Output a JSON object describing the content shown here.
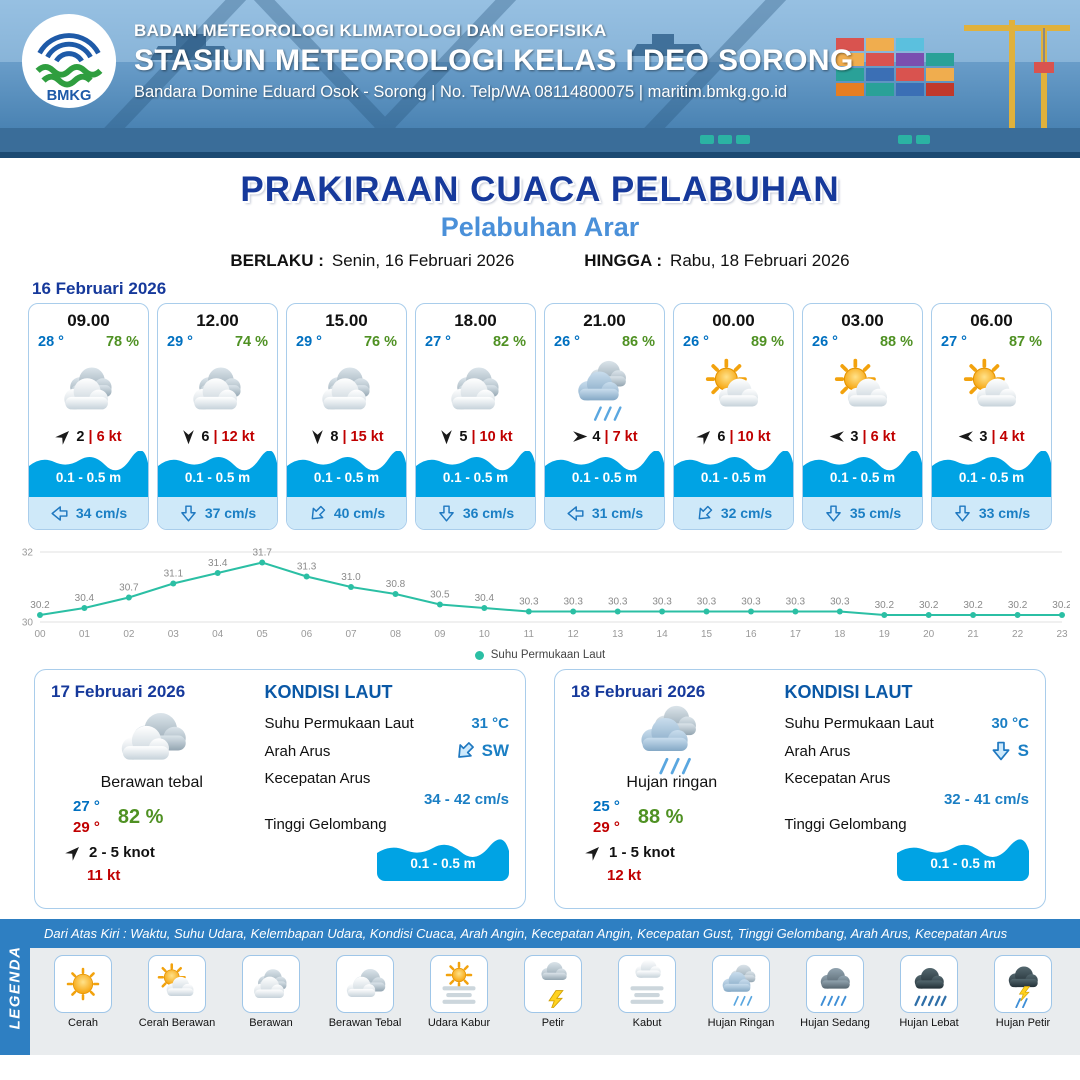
{
  "header": {
    "logo_text": "BMKG",
    "line1": "BADAN METEOROLOGI KLIMATOLOGI DAN GEOFISIKA",
    "line2": "STASIUN METEOROLOGI KELAS I DEO SORONG",
    "line3": "Bandara Domine Eduard Osok - Sorong | No. Telp/WA 08114800075 | maritim.bmkg.go.id"
  },
  "title": {
    "main": "PRAKIRAAN CUACA PELABUHAN",
    "subtitle": "Pelabuhan Arar",
    "berlaku_label": "BERLAKU :",
    "berlaku_value": "Senin, 16 Februari 2026",
    "hingga_label": "HINGGA :",
    "hingga_value": "Rabu, 18 Februari 2026"
  },
  "forecast_date": "16 Februari 2026",
  "misc": {
    "wind_separator": "|"
  },
  "colors": {
    "title_blue": "#16399b",
    "subtitle_blue": "#4a90d9",
    "temp_blue": "#0070c0",
    "humidity_green": "#4f9123",
    "gust_red": "#c00000",
    "wave_blue": "#00a3e4",
    "current_blue": "#1b7fc4",
    "line_teal": "#2bbfa4"
  },
  "cards": [
    {
      "time": "09.00",
      "temp": "28 °",
      "rh": "78 %",
      "icon": "berawan",
      "wind_dir": "NE",
      "wind_speed": "2",
      "gust": "6 kt",
      "wave": "0.1 - 0.5 m",
      "current_dir": "W",
      "current_speed": "34 cm/s"
    },
    {
      "time": "12.00",
      "temp": "29 °",
      "rh": "74 %",
      "icon": "berawan",
      "wind_dir": "S",
      "wind_speed": "6",
      "gust": "12 kt",
      "wave": "0.1 - 0.5 m",
      "current_dir": "S",
      "current_speed": "37 cm/s"
    },
    {
      "time": "15.00",
      "temp": "29 °",
      "rh": "76 %",
      "icon": "berawan",
      "wind_dir": "S",
      "wind_speed": "8",
      "gust": "15 kt",
      "wave": "0.1 - 0.5 m",
      "current_dir": "SW",
      "current_speed": "40 cm/s"
    },
    {
      "time": "18.00",
      "temp": "27 °",
      "rh": "82 %",
      "icon": "berawan",
      "wind_dir": "S",
      "wind_speed": "5",
      "gust": "10 kt",
      "wave": "0.1 - 0.5 m",
      "current_dir": "S",
      "current_speed": "36 cm/s"
    },
    {
      "time": "21.00",
      "temp": "26 °",
      "rh": "86 %",
      "icon": "hujan-ringan",
      "wind_dir": "E",
      "wind_speed": "4",
      "gust": "7 kt",
      "wave": "0.1 - 0.5 m",
      "current_dir": "W",
      "current_speed": "31 cm/s"
    },
    {
      "time": "00.00",
      "temp": "26 °",
      "rh": "89 %",
      "icon": "cerah-berawan",
      "wind_dir": "NE",
      "wind_speed": "6",
      "gust": "10 kt",
      "wave": "0.1 - 0.5 m",
      "current_dir": "SW",
      "current_speed": "32 cm/s"
    },
    {
      "time": "03.00",
      "temp": "26 °",
      "rh": "88 %",
      "icon": "cerah-berawan",
      "wind_dir": "W",
      "wind_speed": "3",
      "gust": "6 kt",
      "wave": "0.1 - 0.5 m",
      "current_dir": "S",
      "current_speed": "35 cm/s"
    },
    {
      "time": "06.00",
      "temp": "27 °",
      "rh": "87 %",
      "icon": "cerah-berawan",
      "wind_dir": "W",
      "wind_speed": "3",
      "gust": "4 kt",
      "wave": "0.1 - 0.5 m",
      "current_dir": "S",
      "current_speed": "33 cm/s"
    }
  ],
  "chart_data": {
    "type": "line",
    "x": [
      "00",
      "01",
      "02",
      "03",
      "04",
      "05",
      "06",
      "07",
      "08",
      "09",
      "10",
      "11",
      "12",
      "13",
      "14",
      "15",
      "16",
      "17",
      "18",
      "19",
      "20",
      "21",
      "22",
      "23"
    ],
    "values": [
      30.2,
      30.4,
      30.7,
      31.1,
      31.4,
      31.7,
      31.3,
      31.0,
      30.8,
      30.5,
      30.4,
      30.3,
      30.3,
      30.3,
      30.3,
      30.3,
      30.3,
      30.3,
      30.3,
      30.2,
      30.2,
      30.2,
      30.2,
      30.2
    ],
    "ylim": [
      30,
      32
    ],
    "yticks": [
      30,
      32
    ],
    "legend": "Suhu Permukaan Laut",
    "line_color": "#2bbfa4",
    "grid": true,
    "legend_position": "bottom"
  },
  "daily": [
    {
      "date": "17 Februari 2026",
      "icon": "berawan-tebal",
      "condition": "Berawan tebal",
      "temp_min": "27 °",
      "temp_max": "29 °",
      "rh": "82 %",
      "wind_dir": "NE",
      "wind_range": "2  - 5 knot",
      "gust": "11 kt",
      "sea_title": "KONDISI LAUT",
      "sst_label": "Suhu Permukaan Laut",
      "sst": "31 °C",
      "current_dir_label": "Arah Arus",
      "current_dir": "SW",
      "current_speed_label": "Kecepatan Arus",
      "current_speed": "34  - 42 cm/s",
      "wave_label": "Tinggi Gelombang",
      "wave": "0.1 - 0.5 m"
    },
    {
      "date": "18 Februari 2026",
      "icon": "hujan-ringan",
      "condition": "Hujan ringan",
      "temp_min": "25 °",
      "temp_max": "29 °",
      "rh": "88 %",
      "wind_dir": "NE",
      "wind_range": "1  - 5 knot",
      "gust": "12 kt",
      "sea_title": "KONDISI LAUT",
      "sst_label": "Suhu Permukaan Laut",
      "sst": "30 °C",
      "current_dir_label": "Arah Arus",
      "current_dir": "S",
      "current_speed_label": "Kecepatan Arus",
      "current_speed": "32  - 41 cm/s",
      "wave_label": "Tinggi Gelombang",
      "wave": "0.1 - 0.5 m"
    }
  ],
  "legend": {
    "title": "LEGENDA",
    "description": "Dari Atas Kiri : Waktu, Suhu Udara, Kelembapan Udara, Kondisi Cuaca, Arah Angin, Kecepatan Angin, Kecepatan Gust, Tinggi Gelombang, Arah Arus, Kecepatan Arus",
    "items": [
      {
        "label": "Cerah",
        "icon": "cerah"
      },
      {
        "label": "Cerah Berawan",
        "icon": "cerah-berawan"
      },
      {
        "label": "Berawan",
        "icon": "berawan"
      },
      {
        "label": "Berawan Tebal",
        "icon": "berawan-tebal"
      },
      {
        "label": "Udara Kabur",
        "icon": "udara-kabur"
      },
      {
        "label": "Petir",
        "icon": "petir"
      },
      {
        "label": "Kabut",
        "icon": "kabut"
      },
      {
        "label": "Hujan Ringan",
        "icon": "hujan-ringan"
      },
      {
        "label": "Hujan Sedang",
        "icon": "hujan-sedang"
      },
      {
        "label": "Hujan Lebat",
        "icon": "hujan-lebat"
      },
      {
        "label": "Hujan Petir",
        "icon": "hujan-petir"
      }
    ]
  }
}
